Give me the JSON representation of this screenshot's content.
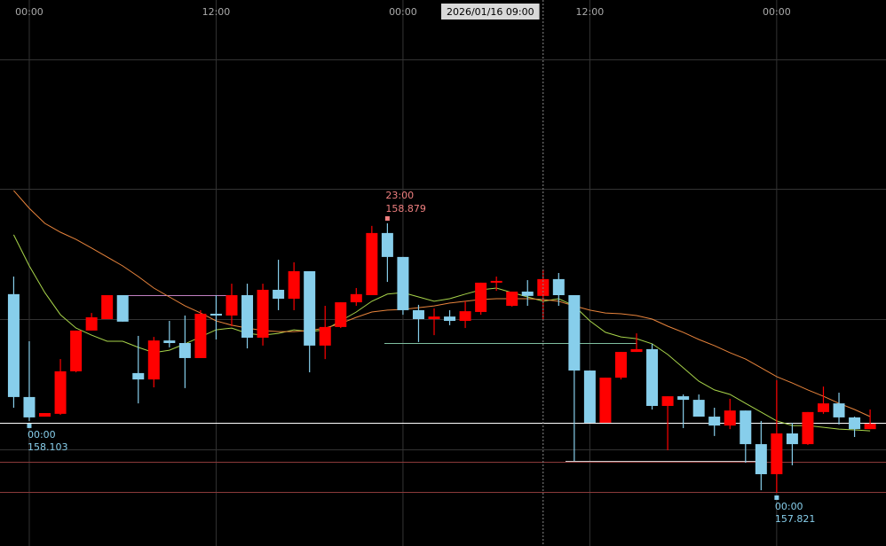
{
  "chart_data": {
    "type": "candlestick",
    "x": [
      -1,
      0,
      1,
      2,
      3,
      4,
      5,
      6,
      7,
      8,
      9,
      10,
      11,
      12,
      13,
      14,
      15,
      16,
      17,
      18,
      19,
      20,
      21,
      22,
      23,
      24,
      25,
      26,
      27,
      28,
      29,
      30,
      31,
      32,
      33,
      34,
      35,
      36,
      37,
      38,
      39,
      40,
      41,
      42,
      43,
      44,
      45,
      46,
      47,
      48,
      49,
      50,
      51,
      52,
      53,
      54
    ],
    "open": [
      158.601,
      158.197,
      158.12,
      158.131,
      158.298,
      158.458,
      158.503,
      158.597,
      158.291,
      158.266,
      158.419,
      158.409,
      158.35,
      158.524,
      158.517,
      158.597,
      158.43,
      158.618,
      158.583,
      158.691,
      158.399,
      158.472,
      158.569,
      158.597,
      158.841,
      158.747,
      158.538,
      158.503,
      158.513,
      158.496,
      158.531,
      158.646,
      158.555,
      158.611,
      158.594,
      158.66,
      158.597,
      158.301,
      158.096,
      158.273,
      158.374,
      158.385,
      158.162,
      158.2,
      158.186,
      158.12,
      158.085,
      158.144,
      158.012,
      157.894,
      158.054,
      158.012,
      158.138,
      158.172,
      158.117,
      158.071
    ],
    "high": [
      158.67,
      158.416,
      158.134,
      158.346,
      158.458,
      158.527,
      158.597,
      158.597,
      158.437,
      158.433,
      158.496,
      158.517,
      158.538,
      158.597,
      158.642,
      158.642,
      158.642,
      158.736,
      158.726,
      158.691,
      158.555,
      158.569,
      158.625,
      158.869,
      158.879,
      158.747,
      158.559,
      158.545,
      158.538,
      158.573,
      158.646,
      158.67,
      158.611,
      158.656,
      158.698,
      158.684,
      158.597,
      158.301,
      158.273,
      158.374,
      158.447,
      158.406,
      158.2,
      158.207,
      158.207,
      158.155,
      158.19,
      158.144,
      158.103,
      158.263,
      158.096,
      158.138,
      158.238,
      158.214,
      158.12,
      158.148
    ],
    "low": [
      158.155,
      158.103,
      158.12,
      158.127,
      158.294,
      158.458,
      158.503,
      158.493,
      158.172,
      158.235,
      158.392,
      158.232,
      158.35,
      158.423,
      158.475,
      158.388,
      158.399,
      158.538,
      158.538,
      158.294,
      158.346,
      158.468,
      158.555,
      158.597,
      158.649,
      158.52,
      158.413,
      158.44,
      158.479,
      158.468,
      158.52,
      158.614,
      158.552,
      158.555,
      158.503,
      158.555,
      157.946,
      158.096,
      158.096,
      158.266,
      158.374,
      158.148,
      157.988,
      158.075,
      158.12,
      158.044,
      158.071,
      157.939,
      157.831,
      157.821,
      157.929,
      158.009,
      158.131,
      158.089,
      158.04,
      158.071
    ],
    "close": [
      158.197,
      158.117,
      158.134,
      158.298,
      158.458,
      158.51,
      158.597,
      158.493,
      158.266,
      158.419,
      158.409,
      158.35,
      158.524,
      158.517,
      158.597,
      158.43,
      158.618,
      158.583,
      158.691,
      158.399,
      158.472,
      158.569,
      158.601,
      158.841,
      158.747,
      158.538,
      158.503,
      158.513,
      158.496,
      158.534,
      158.646,
      158.653,
      158.611,
      158.594,
      158.66,
      158.597,
      158.301,
      158.096,
      158.273,
      158.374,
      158.385,
      158.162,
      158.2,
      158.186,
      158.12,
      158.085,
      158.144,
      158.012,
      157.894,
      158.054,
      158.012,
      158.138,
      158.172,
      158.117,
      158.071,
      158.092
    ],
    "up_color": "#ff0000",
    "down_color": "#87ceeb",
    "series": [
      {
        "color": "#a8d44a",
        "values": [
          158.834,
          158.712,
          158.607,
          158.52,
          158.468,
          158.44,
          158.416,
          158.416,
          158.392,
          158.371,
          158.381,
          158.406,
          158.433,
          158.461,
          158.468,
          158.447,
          158.44,
          158.447,
          158.461,
          158.454,
          158.461,
          158.496,
          158.531,
          158.573,
          158.601,
          158.607,
          158.59,
          158.573,
          158.583,
          158.601,
          158.618,
          158.625,
          158.607,
          158.59,
          158.573,
          158.583,
          158.555,
          158.496,
          158.451,
          158.433,
          158.426,
          158.406,
          158.364,
          158.312,
          158.259,
          158.225,
          158.207,
          158.172,
          158.138,
          158.103,
          158.085,
          158.085,
          158.078,
          158.071,
          158.068,
          158.064
        ]
      },
      {
        "color": "#e8843c",
        "values": [
          159.008,
          158.938,
          158.879,
          158.844,
          158.816,
          158.782,
          158.747,
          158.712,
          158.67,
          158.625,
          158.59,
          158.555,
          158.527,
          158.496,
          158.479,
          158.468,
          158.458,
          158.454,
          158.454,
          158.458,
          158.468,
          158.486,
          158.51,
          158.531,
          158.538,
          158.541,
          158.548,
          158.555,
          158.566,
          158.573,
          158.58,
          158.583,
          158.583,
          158.583,
          158.58,
          158.573,
          158.555,
          158.538,
          158.527,
          158.524,
          158.517,
          158.503,
          158.475,
          158.451,
          158.423,
          158.399,
          158.371,
          158.346,
          158.312,
          158.277,
          158.252,
          158.225,
          158.2,
          158.172,
          158.148,
          158.12
        ]
      }
    ],
    "xlim": [
      -1.88,
      55.02
    ],
    "ylim": [
      157.612,
      159.756
    ],
    "xticks": [
      {
        "value": 0,
        "label": "00:00"
      },
      {
        "value": 12,
        "label": "12:00"
      },
      {
        "value": 24,
        "label": "00:00"
      },
      {
        "value": 36,
        "label": "12:00"
      },
      {
        "value": 48,
        "label": "00:00"
      }
    ],
    "crosshair": {
      "x": 33,
      "label": "2026/01/16 09:00"
    },
    "annotations": [
      {
        "x": 23,
        "label": "23:00",
        "value": 158.879,
        "color": "#f08080"
      },
      {
        "x": 0,
        "label": "00:00",
        "value": 158.103,
        "color": "#87ceeb"
      },
      {
        "x": 48,
        "label": "00:00",
        "value": 157.821,
        "color": "#87ceeb"
      }
    ]
  }
}
